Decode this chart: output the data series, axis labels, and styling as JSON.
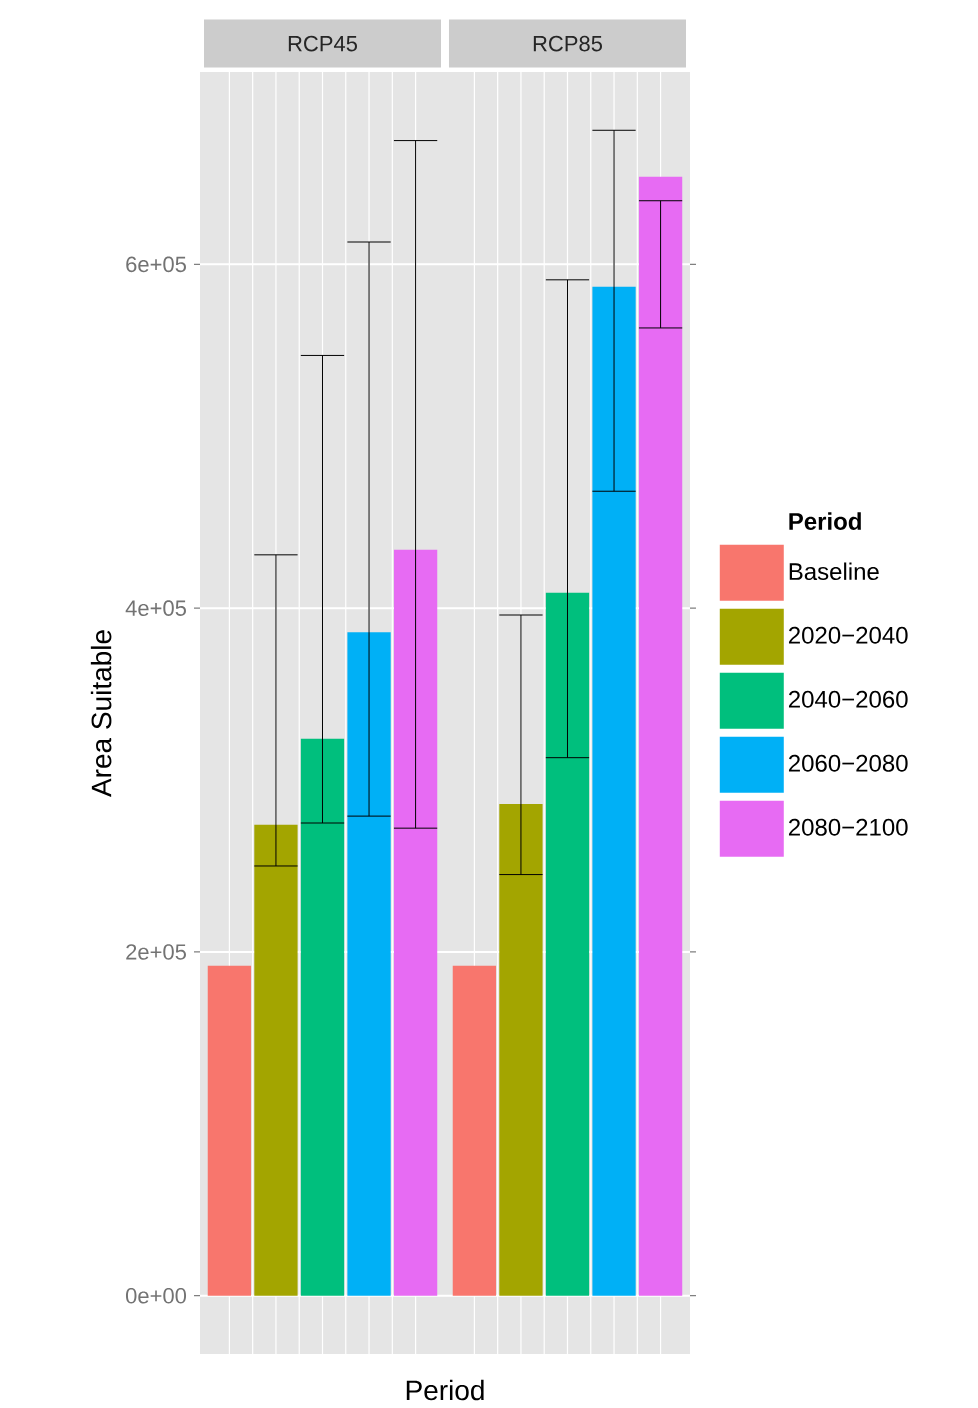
{
  "chart_data": {
    "type": "bar",
    "ylabel": "Area Suitable",
    "xlabel": "Period",
    "legend_title": "Period",
    "categories": [
      "RCP45",
      "RCP85"
    ],
    "series": [
      {
        "name": "Baseline",
        "color": "#f8766d",
        "values": [
          192000,
          192000
        ],
        "errors": [
          null,
          null
        ]
      },
      {
        "name": "2020−2040",
        "color": "#a3a500",
        "values": [
          274000,
          286000
        ],
        "errors": [
          [
            250000,
            431000
          ],
          [
            245000,
            396000
          ]
        ]
      },
      {
        "name": "2040−2060",
        "color": "#00bf7d",
        "values": [
          324000,
          409000
        ],
        "errors": [
          [
            275000,
            547000
          ],
          [
            313000,
            591000
          ]
        ]
      },
      {
        "name": "2060−2080",
        "color": "#00b0f6",
        "values": [
          386000,
          587000
        ],
        "errors": [
          [
            279000,
            613000
          ],
          [
            468000,
            678000
          ]
        ]
      },
      {
        "name": "2080−2100",
        "color": "#e76bf3",
        "values": [
          434000,
          651000
        ],
        "errors": [
          [
            272000,
            672000
          ],
          [
            563000,
            637000
          ]
        ]
      }
    ],
    "ylim": [
      -33900,
      711900
    ],
    "yticks": [
      {
        "value": 0,
        "label": "0e+00"
      },
      {
        "value": 200000,
        "label": "2e+05"
      },
      {
        "value": 400000,
        "label": "4e+05"
      },
      {
        "value": 600000,
        "label": "6e+05"
      }
    ],
    "grid": true,
    "legend": "right"
  }
}
